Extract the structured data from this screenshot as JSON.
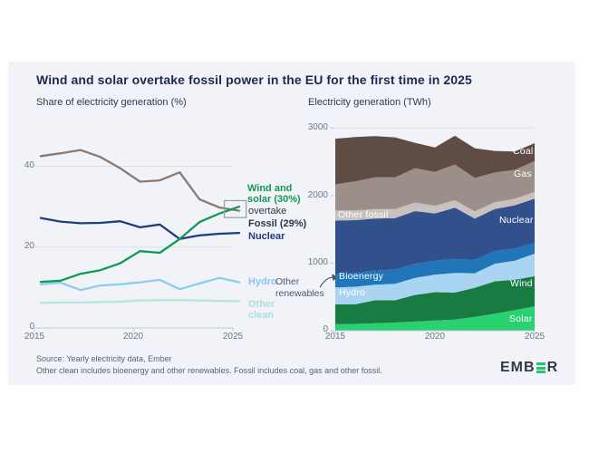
{
  "header": {
    "title": "Wind and solar overtake fossil power in the EU for the first time in 2025"
  },
  "charts": {
    "left": {
      "subtitle": "Share of electricity generation (%)",
      "labels": {
        "wind_solar": "Wind and\nsolar (30%)",
        "overtake": "overtake",
        "fossil": "Fossil (29%)",
        "nuclear": "Nuclear",
        "hydro": "Hydro",
        "other_clean": "Other\nclean"
      },
      "label_colors": {
        "wind_solar": "#0e9b53",
        "overtake": "#2e3440",
        "fossil": "#2e3440",
        "nuclear": "#1f3e7e",
        "hydro": "#85c6ea",
        "other_clean": "#abe0d9"
      }
    },
    "right": {
      "subtitle": "Electricity generation (TWh)",
      "labels": {
        "coal": "Coal",
        "gas": "Gas",
        "nuclear": "Nuclear",
        "other_fossil": "Other fossil",
        "bioenergy": "Bioenergy",
        "hydro": "Hydro",
        "wind": "Wind",
        "solar": "Solar",
        "other_renewables": "Other\nrenewables"
      }
    }
  },
  "chart_data": [
    {
      "type": "line",
      "title": "Share of electricity generation (%)",
      "x": [
        2015,
        2016,
        2017,
        2018,
        2019,
        2020,
        2021,
        2022,
        2023,
        2024,
        2025
      ],
      "ylim": [
        0,
        50
      ],
      "yticks": [
        0,
        20,
        40
      ],
      "xticks": [
        2015,
        2020,
        2025
      ],
      "grid": true,
      "series": [
        {
          "name": "Fossil",
          "color": "#8b7a72",
          "values": [
            42.5,
            43.2,
            44.0,
            42.3,
            39.5,
            36.2,
            36.5,
            38.5,
            31.8,
            29.8,
            29.0
          ]
        },
        {
          "name": "Nuclear",
          "color": "#1f3e7e",
          "values": [
            27.2,
            26.3,
            25.9,
            26.0,
            26.4,
            24.9,
            25.6,
            22.0,
            22.9,
            23.3,
            23.5
          ]
        },
        {
          "name": "Hydro",
          "color": "#8fcbec",
          "values": [
            10.8,
            11.2,
            9.4,
            10.5,
            10.8,
            11.3,
            11.9,
            9.6,
            11.0,
            12.4,
            11.3
          ]
        },
        {
          "name": "Other clean",
          "color": "#b5e6e0",
          "values": [
            6.2,
            6.3,
            6.3,
            6.4,
            6.5,
            6.8,
            6.9,
            6.9,
            6.8,
            6.7,
            6.6
          ]
        },
        {
          "name": "Wind and solar",
          "color": "#0f9b53",
          "values": [
            11.4,
            11.7,
            13.4,
            14.3,
            16.0,
            19.0,
            18.6,
            22.0,
            26.2,
            28.3,
            30.0
          ]
        }
      ],
      "highlight_box": {
        "x": [
          2024.25,
          2025.35
        ],
        "y": [
          27.3,
          31.5
        ],
        "color": "#99a1ab"
      }
    },
    {
      "type": "area",
      "title": "Electricity generation (TWh)",
      "x": [
        2015,
        2016,
        2017,
        2018,
        2019,
        2020,
        2021,
        2022,
        2023,
        2024,
        2025
      ],
      "ylim": [
        0,
        3000
      ],
      "yticks": [
        0,
        1000,
        2000,
        3000
      ],
      "xticks": [
        2015,
        2020,
        2025
      ],
      "stack_order": "bottom_to_top",
      "series": [
        {
          "name": "Solar",
          "color": "#2ad171",
          "values": [
            95,
            100,
            110,
            120,
            135,
            150,
            165,
            205,
            250,
            305,
            360
          ]
        },
        {
          "name": "Wind",
          "color": "#187c42",
          "values": [
            295,
            290,
            340,
            330,
            395,
            420,
            400,
            430,
            480,
            450,
            445
          ]
        },
        {
          "name": "Hydro",
          "color": "#a9d5f2",
          "values": [
            250,
            260,
            230,
            245,
            250,
            260,
            290,
            215,
            260,
            280,
            335
          ]
        },
        {
          "name": "Bioenergy",
          "color": "#2076b8",
          "values": [
            200,
            205,
            210,
            210,
            210,
            205,
            205,
            200,
            190,
            180,
            160
          ]
        },
        {
          "name": "Nuclear",
          "color": "#31508c",
          "values": [
            790,
            780,
            770,
            760,
            780,
            700,
            760,
            610,
            620,
            640,
            655
          ]
        },
        {
          "name": "Other fossil",
          "color": "#c8c1bd",
          "values": [
            150,
            145,
            140,
            135,
            125,
            115,
            110,
            105,
            100,
            95,
            100
          ]
        },
        {
          "name": "Gas",
          "color": "#9c8e88",
          "values": [
            385,
            430,
            470,
            470,
            510,
            500,
            530,
            495,
            440,
            430,
            455
          ]
        },
        {
          "name": "Coal",
          "color": "#5f4d45",
          "values": [
            675,
            655,
            610,
            590,
            375,
            360,
            425,
            440,
            320,
            270,
            265
          ]
        }
      ]
    }
  ],
  "footer": {
    "line1": "Source: Yearly electricity data, Ember",
    "line2": "Other clean includes bioenergy and other renewables. Fossil includes coal, gas and other fossil."
  },
  "logo": {
    "prefix": "EMB",
    "suffix": "R"
  }
}
